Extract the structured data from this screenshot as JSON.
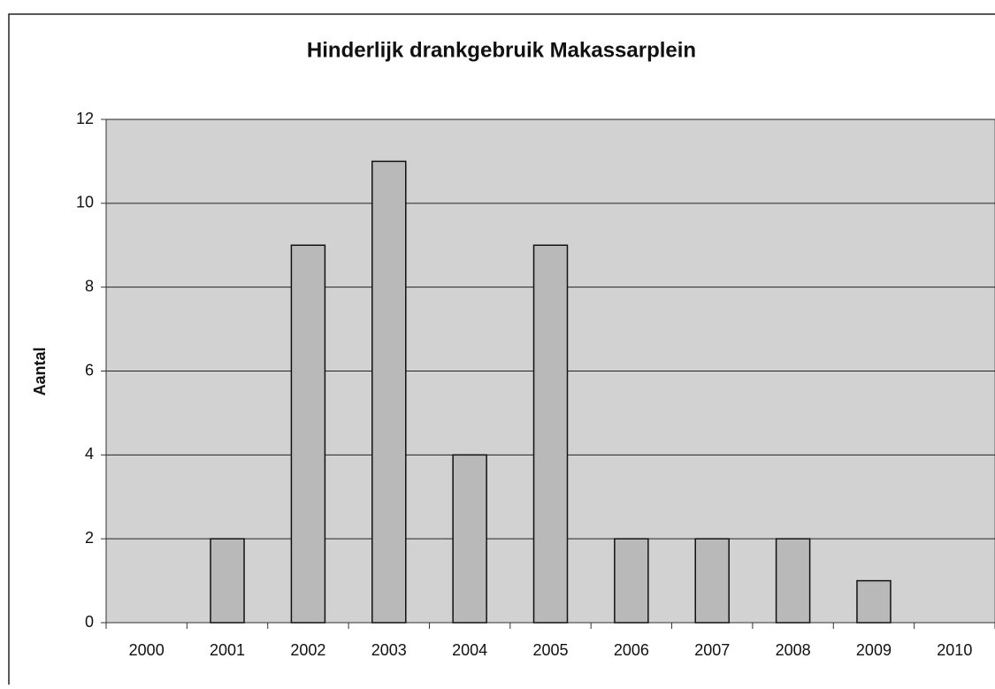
{
  "chart_data": {
    "type": "bar",
    "title": "Hinderlijk drankgebruik Makassarplein",
    "y_label": "Aantal",
    "categories": [
      "2000",
      "2001",
      "2002",
      "2003",
      "2004",
      "2005",
      "2006",
      "2007",
      "2008",
      "2009",
      "2010"
    ],
    "values": [
      0,
      2,
      9,
      11,
      4,
      9,
      2,
      2,
      2,
      1,
      0
    ],
    "color": "#b9b9b9",
    "ylim": [
      0,
      12
    ],
    "yticks": [
      0,
      2,
      4,
      6,
      8,
      10,
      12
    ],
    "grid": true
  }
}
